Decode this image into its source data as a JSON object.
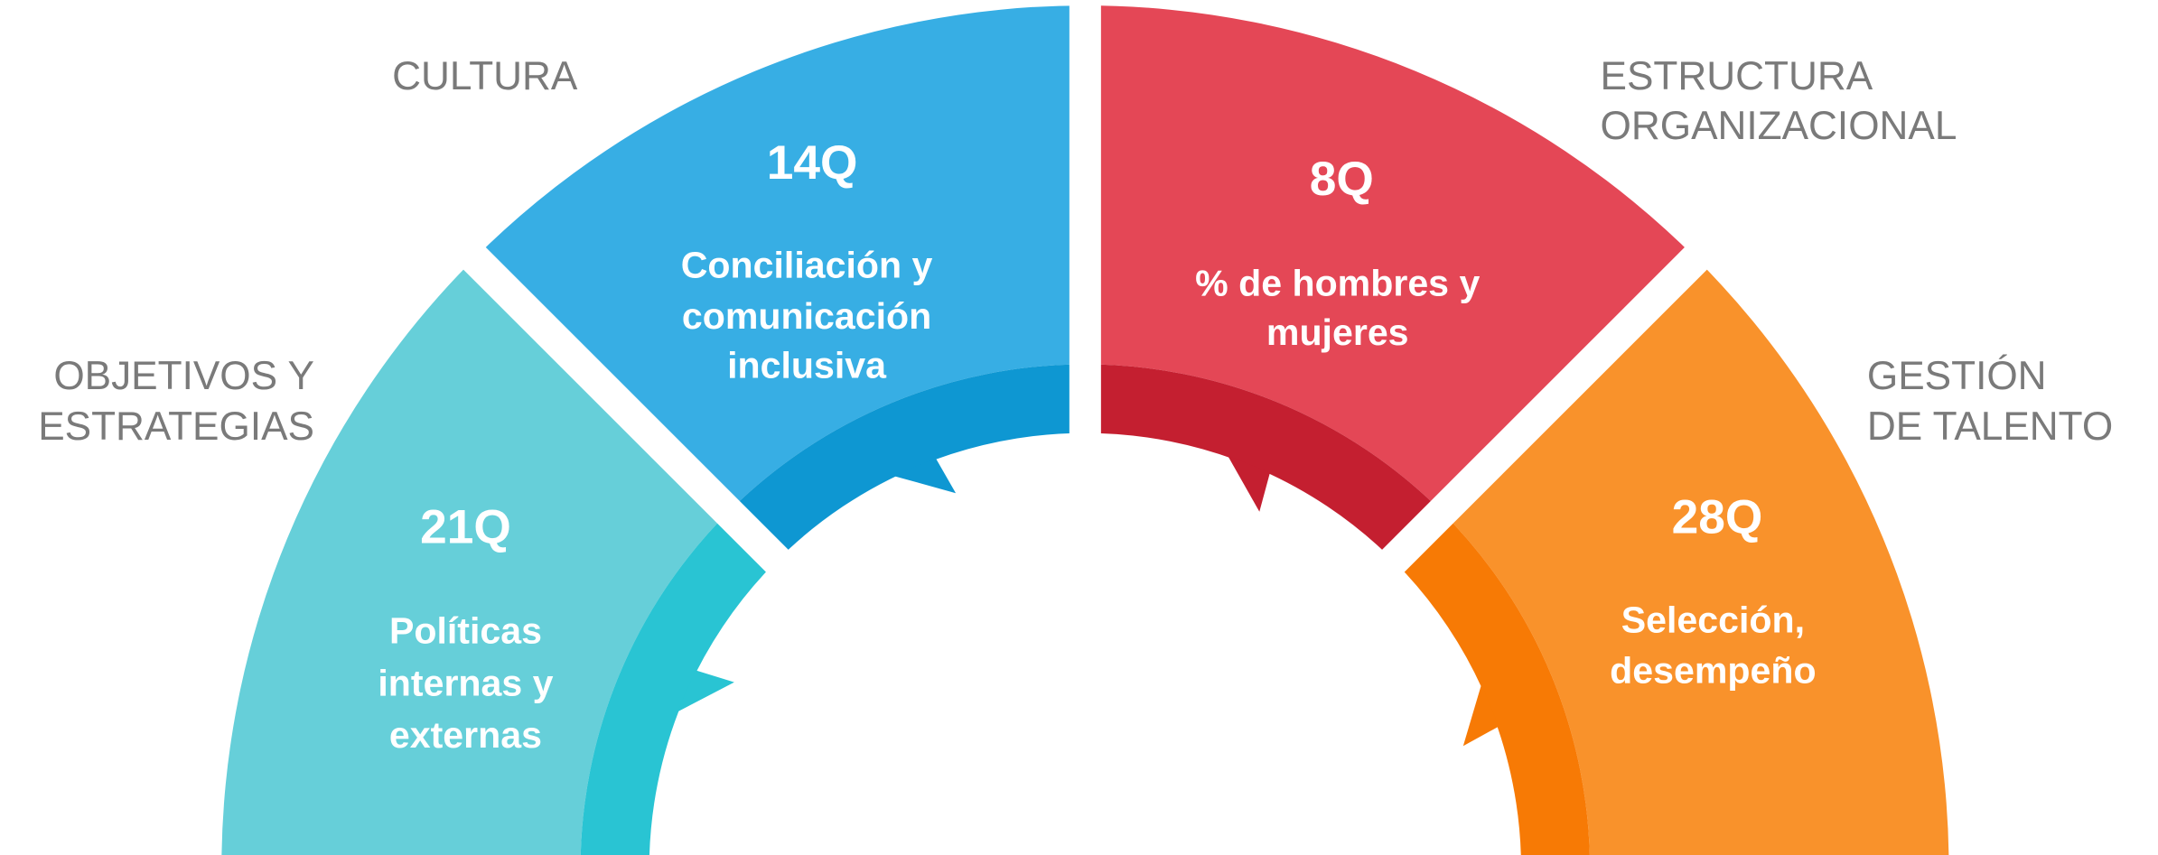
{
  "segments": [
    {
      "label": [
        "OBJETIVOS Y",
        "ESTRATEGIAS"
      ],
      "count": "21Q",
      "description": [
        "Políticas",
        "internas y",
        "externas"
      ]
    },
    {
      "label": [
        "CULTURA"
      ],
      "count": "14Q",
      "description": [
        "Conciliación y",
        "comunicación",
        "inclusiva"
      ]
    },
    {
      "label": [
        "ESTRUCTURA",
        "ORGANIZACIONAL"
      ],
      "count": "8Q",
      "description": [
        "% de hombres y",
        "mujeres"
      ]
    },
    {
      "label": [
        "GESTIÓN",
        "DE TALENTO"
      ],
      "count": "28Q",
      "description": [
        "Selección,",
        "desempeño"
      ]
    }
  ]
}
